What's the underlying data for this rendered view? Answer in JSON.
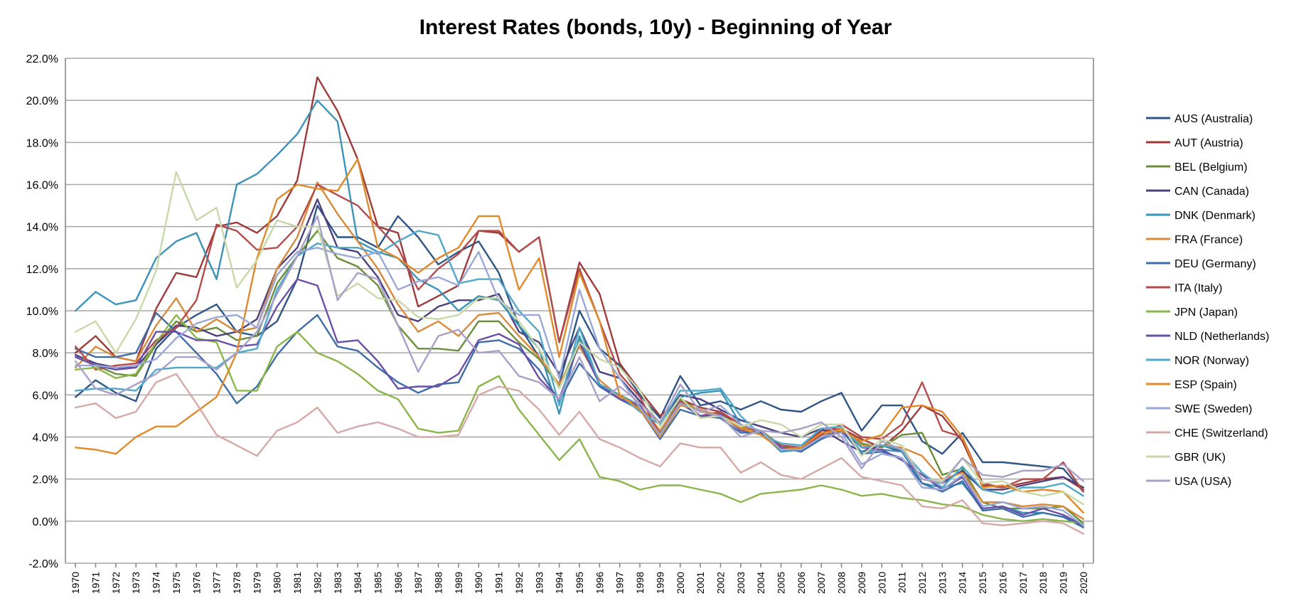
{
  "chart_data": {
    "type": "line",
    "title": "Interest Rates (bonds, 10y) - Beginning of Year",
    "xlabel": "",
    "ylabel": "",
    "ylim": [
      -2,
      22
    ],
    "yticks": [
      "22.0%",
      "20.0%",
      "18.0%",
      "16.0%",
      "14.0%",
      "12.0%",
      "10.0%",
      "8.0%",
      "6.0%",
      "4.0%",
      "2.0%",
      "0.0%",
      "-2.0%"
    ],
    "ytick_values": [
      22,
      20,
      18,
      16,
      14,
      12,
      10,
      8,
      6,
      4,
      2,
      0,
      -2
    ],
    "x": [
      1970,
      1971,
      1972,
      1973,
      1974,
      1975,
      1976,
      1977,
      1978,
      1979,
      1980,
      1981,
      1982,
      1983,
      1984,
      1985,
      1986,
      1987,
      1988,
      1989,
      1990,
      1991,
      1992,
      1993,
      1994,
      1995,
      1996,
      1997,
      1998,
      1999,
      2000,
      2001,
      2002,
      2003,
      2004,
      2005,
      2006,
      2007,
      2008,
      2009,
      2010,
      2011,
      2012,
      2013,
      2014,
      2015,
      2016,
      2017,
      2018,
      2019,
      2020
    ],
    "x_labels": [
      "1970",
      "1971",
      "1972",
      "1973",
      "1974",
      "1975",
      "1976",
      "1977",
      "1978",
      "1979",
      "1980",
      "1981",
      "1982",
      "1983",
      "1984",
      "1985",
      "1986",
      "1987",
      "1988",
      "1989",
      "1990",
      "1991",
      "1992",
      "1993",
      "1994",
      "1995",
      "1996",
      "1997",
      "1998",
      "1999",
      "2000",
      "2001",
      "2002",
      "2003",
      "2004",
      "2005",
      "2006",
      "2007",
      "2008",
      "2009",
      "2010",
      "2011",
      "2012",
      "2013",
      "2014",
      "2015",
      "2016",
      "2017",
      "2018",
      "2019",
      "2020"
    ],
    "grid": true,
    "legend_position": "right",
    "series": [
      {
        "name": "AUS (Australia)",
        "color": "#2f5486",
        "values": [
          5.9,
          6.7,
          6.1,
          5.7,
          8.2,
          9.2,
          9.8,
          10.3,
          9.0,
          8.8,
          9.5,
          11.5,
          15.0,
          13.5,
          13.5,
          13.0,
          14.5,
          13.5,
          12.2,
          12.8,
          13.3,
          11.8,
          9.3,
          7.8,
          6.5,
          10.0,
          8.2,
          7.4,
          6.0,
          4.9,
          6.9,
          5.5,
          5.7,
          5.3,
          5.7,
          5.3,
          5.2,
          5.7,
          6.1,
          4.3,
          5.5,
          5.5,
          3.8,
          3.2,
          4.2,
          2.8,
          2.8,
          2.7,
          2.6,
          2.5,
          1.4
        ]
      },
      {
        "name": "AUT (Austria)",
        "color": "#9e3b3a",
        "values": [
          8.0,
          8.8,
          7.8,
          7.6,
          10.1,
          11.8,
          11.6,
          14.0,
          14.2,
          13.7,
          14.5,
          16.2,
          21.1,
          19.5,
          17.2,
          14.0,
          13.7,
          10.2,
          10.7,
          11.2,
          13.8,
          13.7,
          12.8,
          13.5,
          8.5,
          12.3,
          10.8,
          7.5,
          6.2,
          5.0,
          5.8,
          5.4,
          5.2,
          4.4,
          4.3,
          3.6,
          3.5,
          4.3,
          4.4,
          3.9,
          3.5,
          4.3,
          5.5,
          5.0,
          3.8,
          1.7,
          1.6,
          1.8,
          2.0,
          2.1,
          1.5
        ]
      },
      {
        "name": "BEL (Belgium)",
        "color": "#6a8e3a",
        "values": [
          7.8,
          7.4,
          7.0,
          6.9,
          8.4,
          9.5,
          9.0,
          9.2,
          8.6,
          8.8,
          11.3,
          12.6,
          13.8,
          12.5,
          12.1,
          11.2,
          9.3,
          8.2,
          8.2,
          8.1,
          9.5,
          9.5,
          8.5,
          7.7,
          6.4,
          8.6,
          6.5,
          6.0,
          5.4,
          4.0,
          5.8,
          5.2,
          5.1,
          4.4,
          4.3,
          3.6,
          3.4,
          4.2,
          4.3,
          3.7,
          3.5,
          4.1,
          4.2,
          2.2,
          2.5,
          0.9,
          0.6,
          0.6,
          0.6,
          0.7,
          -0.1
        ]
      },
      {
        "name": "CAN (Canada)",
        "color": "#4b3f7e",
        "values": [
          7.9,
          7.5,
          7.3,
          7.3,
          8.4,
          9.3,
          9.2,
          8.8,
          9.0,
          9.6,
          12.0,
          13.0,
          15.3,
          13.0,
          12.8,
          11.6,
          9.8,
          9.5,
          10.2,
          10.5,
          10.5,
          10.8,
          9.0,
          8.5,
          7.0,
          9.2,
          7.1,
          6.8,
          5.7,
          4.6,
          6.0,
          5.8,
          5.3,
          4.8,
          4.5,
          4.2,
          4.0,
          4.4,
          3.8,
          3.3,
          3.6,
          3.3,
          2.0,
          1.8,
          2.4,
          1.5,
          1.5,
          1.7,
          1.9,
          2.1,
          1.6
        ]
      },
      {
        "name": "DNK (Denmark)",
        "color": "#3a93b8",
        "values": [
          10.0,
          10.9,
          10.3,
          10.5,
          12.5,
          13.3,
          13.7,
          11.5,
          16.0,
          16.5,
          17.4,
          18.4,
          20.0,
          19.0,
          13.3,
          12.8,
          12.5,
          11.5,
          11.0,
          10.0,
          10.7,
          10.5,
          9.3,
          8.2,
          5.1,
          8.8,
          6.5,
          6.0,
          5.5,
          4.2,
          5.9,
          6.1,
          6.2,
          4.6,
          4.2,
          3.3,
          3.4,
          4.0,
          4.3,
          3.3,
          3.4,
          3.3,
          1.8,
          1.6,
          1.8,
          0.6,
          0.7,
          0.4,
          0.4,
          0.2,
          -0.2
        ]
      },
      {
        "name": "FRA (France)",
        "color": "#d9893a",
        "values": [
          7.3,
          8.3,
          7.8,
          7.6,
          9.3,
          10.6,
          9.0,
          9.6,
          9.0,
          9.2,
          12.0,
          13.5,
          16.1,
          14.6,
          13.3,
          12.0,
          10.3,
          9.0,
          9.5,
          8.8,
          9.8,
          9.9,
          8.8,
          7.8,
          6.5,
          8.3,
          6.7,
          5.9,
          5.5,
          4.3,
          5.7,
          5.2,
          5.0,
          4.5,
          4.2,
          3.4,
          3.5,
          4.1,
          4.4,
          3.6,
          3.6,
          3.5,
          3.1,
          2.0,
          2.3,
          0.9,
          0.9,
          0.7,
          0.8,
          0.7,
          0.1
        ]
      },
      {
        "name": "DEU (Germany)",
        "color": "#3c6da8",
        "values": [
          8.2,
          7.8,
          7.8,
          8.0,
          9.9,
          9.0,
          8.0,
          7.0,
          5.6,
          6.4,
          7.9,
          9.0,
          9.8,
          8.3,
          8.1,
          7.3,
          6.6,
          6.1,
          6.5,
          6.6,
          8.5,
          8.6,
          8.2,
          7.2,
          5.7,
          7.5,
          6.4,
          5.8,
          5.3,
          3.9,
          5.3,
          5.0,
          4.9,
          4.2,
          4.2,
          3.5,
          3.3,
          3.9,
          4.3,
          3.2,
          3.3,
          3.0,
          1.8,
          1.4,
          1.9,
          0.5,
          0.6,
          0.2,
          0.4,
          0.2,
          -0.3
        ]
      },
      {
        "name": "ITA (Italy)",
        "color": "#b24b4a",
        "values": [
          8.3,
          7.2,
          7.4,
          7.5,
          8.6,
          9.2,
          10.5,
          14.1,
          13.8,
          12.9,
          13.0,
          14.0,
          16.0,
          15.5,
          15.0,
          14.0,
          13.0,
          11.0,
          12.0,
          12.7,
          13.8,
          13.8,
          12.8,
          13.5,
          8.5,
          12.0,
          9.5,
          7.0,
          5.9,
          4.1,
          5.7,
          5.0,
          5.2,
          4.6,
          4.2,
          3.6,
          3.5,
          4.1,
          4.6,
          4.0,
          3.9,
          4.6,
          6.6,
          4.3,
          4.0,
          1.8,
          1.6,
          2.0,
          2.0,
          2.8,
          1.4
        ]
      },
      {
        "name": "JPN (Japan)",
        "color": "#8ab54a",
        "values": [
          7.2,
          7.3,
          6.8,
          7.0,
          8.5,
          9.8,
          8.7,
          8.5,
          6.2,
          6.2,
          8.3,
          9.0,
          8.0,
          7.6,
          7.0,
          6.2,
          5.8,
          4.4,
          4.2,
          4.3,
          6.4,
          6.9,
          5.3,
          4.1,
          2.9,
          3.9,
          2.1,
          1.9,
          1.5,
          1.7,
          1.7,
          1.5,
          1.3,
          0.9,
          1.3,
          1.4,
          1.5,
          1.7,
          1.5,
          1.2,
          1.3,
          1.1,
          1.0,
          0.8,
          0.7,
          0.3,
          0.1,
          0.0,
          0.1,
          0.0,
          -0.1
        ]
      },
      {
        "name": "NLD (Netherlands)",
        "color": "#6a4fa8",
        "values": [
          7.8,
          7.4,
          7.2,
          7.3,
          9.0,
          9.0,
          8.6,
          8.6,
          8.3,
          8.4,
          10.2,
          11.5,
          11.2,
          8.5,
          8.6,
          7.6,
          6.3,
          6.4,
          6.4,
          7.0,
          8.6,
          8.9,
          8.4,
          6.8,
          5.8,
          8.5,
          6.5,
          5.8,
          5.5,
          4.0,
          5.6,
          5.0,
          5.1,
          4.3,
          4.2,
          3.5,
          3.4,
          4.0,
          4.3,
          3.5,
          3.4,
          2.9,
          2.2,
          1.5,
          2.1,
          0.6,
          0.7,
          0.3,
          0.6,
          0.3,
          -0.2
        ]
      },
      {
        "name": "NOR (Norway)",
        "color": "#4fa8c8",
        "values": [
          6.2,
          6.3,
          6.3,
          6.2,
          7.2,
          7.3,
          7.3,
          7.3,
          8.0,
          8.2,
          11.0,
          12.6,
          13.2,
          13.0,
          13.0,
          12.7,
          13.3,
          13.8,
          13.6,
          11.3,
          11.5,
          11.5,
          10.0,
          9.0,
          5.5,
          9.2,
          6.5,
          6.0,
          5.2,
          4.6,
          6.2,
          6.2,
          6.3,
          5.0,
          4.1,
          3.7,
          3.6,
          4.4,
          4.5,
          3.5,
          3.6,
          3.4,
          2.3,
          1.6,
          2.6,
          1.5,
          1.3,
          1.6,
          1.6,
          1.8,
          1.2
        ]
      },
      {
        "name": "ESP (Spain)",
        "color": "#e08a2a",
        "values": [
          3.5,
          3.4,
          3.2,
          4.0,
          4.5,
          4.5,
          5.2,
          5.9,
          8.0,
          12.5,
          15.3,
          16.0,
          15.8,
          15.7,
          17.2,
          13.0,
          12.5,
          11.8,
          12.5,
          13.0,
          14.5,
          14.5,
          11.0,
          12.5,
          7.8,
          11.8,
          9.5,
          6.0,
          5.3,
          4.0,
          5.5,
          5.3,
          5.0,
          4.4,
          4.1,
          3.4,
          3.5,
          4.2,
          4.3,
          3.8,
          4.1,
          5.4,
          5.5,
          5.2,
          4.0,
          1.6,
          1.7,
          1.4,
          1.5,
          1.4,
          0.4
        ]
      },
      {
        "name": "SWE (Sweden)",
        "color": "#9aa8d8",
        "values": [
          7.4,
          7.4,
          7.3,
          7.4,
          7.7,
          8.7,
          9.4,
          9.7,
          9.8,
          9.2,
          11.7,
          12.8,
          13.0,
          12.7,
          12.5,
          12.8,
          11.0,
          11.4,
          11.6,
          11.2,
          12.8,
          10.5,
          9.8,
          9.8,
          6.8,
          11.0,
          8.2,
          6.8,
          5.4,
          4.1,
          5.6,
          5.2,
          5.5,
          4.6,
          4.3,
          3.4,
          3.4,
          4.0,
          4.2,
          2.7,
          3.2,
          3.0,
          1.6,
          1.5,
          2.2,
          0.7,
          0.9,
          0.6,
          0.7,
          0.5,
          -0.2
        ]
      },
      {
        "name": "CHE (Switzerland)",
        "color": "#d6a8a8",
        "values": [
          5.4,
          5.6,
          4.9,
          5.2,
          6.6,
          7.0,
          5.6,
          4.1,
          3.6,
          3.1,
          4.3,
          4.7,
          5.4,
          4.2,
          4.5,
          4.7,
          4.4,
          4.0,
          4.0,
          4.1,
          6.0,
          6.4,
          6.2,
          5.3,
          4.1,
          5.2,
          3.9,
          3.5,
          3.0,
          2.6,
          3.7,
          3.5,
          3.5,
          2.3,
          2.8,
          2.2,
          2.0,
          2.5,
          3.0,
          2.1,
          1.9,
          1.7,
          0.7,
          0.6,
          1.0,
          -0.1,
          -0.2,
          -0.1,
          0.0,
          -0.1,
          -0.6
        ]
      },
      {
        "name": "GBR (UK)",
        "color": "#c8d8a8",
        "values": [
          9.0,
          9.5,
          8.0,
          9.6,
          11.9,
          16.6,
          14.3,
          14.9,
          11.1,
          12.4,
          14.3,
          14.0,
          14.0,
          10.7,
          11.3,
          10.6,
          10.5,
          9.7,
          9.6,
          9.8,
          10.6,
          10.6,
          9.5,
          8.2,
          6.3,
          8.5,
          7.7,
          7.3,
          6.2,
          4.5,
          5.9,
          4.9,
          5.0,
          4.5,
          4.8,
          4.6,
          4.0,
          4.6,
          4.6,
          3.1,
          3.9,
          3.6,
          2.0,
          1.9,
          3.0,
          1.8,
          1.9,
          1.4,
          1.2,
          1.4,
          0.8
        ]
      },
      {
        "name": "USA (USA)",
        "color": "#a8a0c8",
        "values": [
          7.6,
          6.3,
          6.0,
          6.5,
          7.0,
          7.8,
          7.8,
          7.2,
          8.0,
          9.0,
          10.8,
          12.6,
          14.5,
          10.5,
          11.8,
          11.5,
          9.3,
          7.1,
          8.8,
          9.1,
          8.0,
          8.1,
          6.9,
          6.6,
          5.8,
          7.8,
          5.7,
          6.4,
          5.6,
          4.7,
          6.5,
          5.2,
          5.0,
          4.0,
          4.3,
          4.2,
          4.4,
          4.7,
          4.0,
          2.5,
          3.8,
          3.4,
          2.0,
          1.8,
          3.0,
          2.2,
          2.1,
          2.4,
          2.4,
          2.7,
          1.9
        ]
      }
    ]
  }
}
